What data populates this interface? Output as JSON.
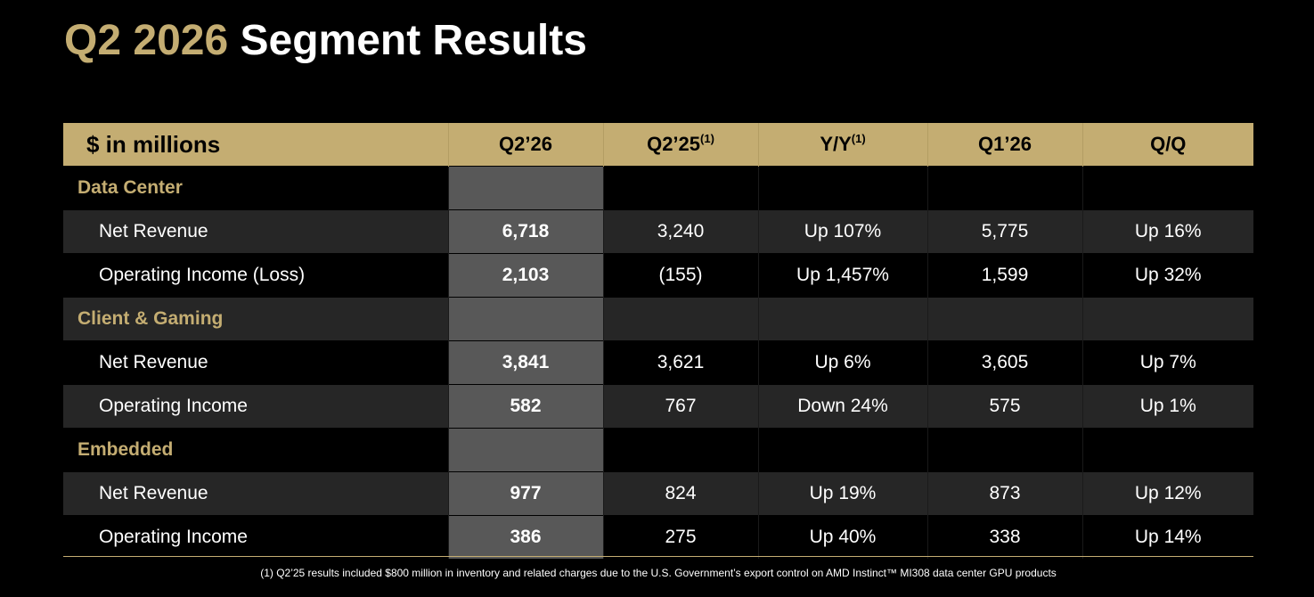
{
  "title": {
    "accent": "Q2 2026",
    "rest": "Segment Results"
  },
  "table": {
    "header": {
      "label": "$ in millions",
      "columns": [
        {
          "text": "Q2’26",
          "sup": ""
        },
        {
          "text": "Q2’25",
          "sup": "(1)"
        },
        {
          "text": "Y/Y",
          "sup": "(1)"
        },
        {
          "text": "Q1’26",
          "sup": ""
        },
        {
          "text": "Q/Q",
          "sup": ""
        }
      ]
    },
    "sections": [
      {
        "name": "Data Center",
        "rows": [
          {
            "label": "Net Revenue",
            "values": [
              "6,718",
              "3,240",
              "Up 107%",
              "5,775",
              "Up 16%"
            ]
          },
          {
            "label": "Operating Income (Loss)",
            "values": [
              "2,103",
              "(155)",
              "Up 1,457%",
              "1,599",
              "Up 32%"
            ]
          }
        ]
      },
      {
        "name": "Client & Gaming",
        "rows": [
          {
            "label": "Net Revenue",
            "values": [
              "3,841",
              "3,621",
              "Up 6%",
              "3,605",
              "Up 7%"
            ]
          },
          {
            "label": "Operating Income",
            "values": [
              "582",
              "767",
              "Down 24%",
              "575",
              "Up 1%"
            ]
          }
        ]
      },
      {
        "name": "Embedded",
        "rows": [
          {
            "label": "Net Revenue",
            "values": [
              "977",
              "824",
              "Up 19%",
              "873",
              "Up 12%"
            ]
          },
          {
            "label": "Operating Income",
            "values": [
              "386",
              "275",
              "Up 40%",
              "338",
              "Up 14%"
            ]
          }
        ]
      }
    ]
  },
  "footnote": "(1) Q2’25 results included $800 million in inventory and related charges due to the U.S. Government’s export control on AMD Instinct™ MI308 data center GPU products",
  "colors": {
    "gold": "#c4ad72",
    "background": "#000000",
    "row_alt": "#262626",
    "current_column": "#585858"
  }
}
